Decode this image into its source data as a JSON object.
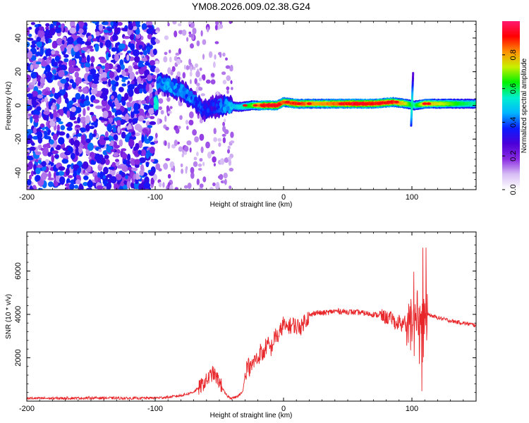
{
  "figure_title": "YM08.2026.009.02.38.G24",
  "chart_data": [
    {
      "type": "heatmap",
      "title": "YM08.2026.009.02.38.G24",
      "xlabel": "Height of straight line (km)",
      "ylabel": "Frequency (Hz)",
      "xlim": [
        -200,
        150
      ],
      "ylim": [
        -50,
        50
      ],
      "xticks": [
        -200,
        -100,
        0,
        100
      ],
      "xtick_labels": [
        "-200",
        "-100",
        "0",
        "100"
      ],
      "yticks": [
        -40,
        -20,
        0,
        20,
        40
      ],
      "ytick_labels": [
        "-40",
        "-20",
        "0",
        "20",
        "40"
      ],
      "colorbar": {
        "label": "Normalized spectral amplitude",
        "range": [
          0.0,
          1.0
        ],
        "ticks": [
          0.0,
          0.2,
          0.4,
          0.6,
          0.8
        ],
        "tick_labels": [
          "0.0",
          "0.2",
          "0.4",
          "0.6",
          "0.8"
        ],
        "colormap": [
          "#ffffff",
          "#d8bff5",
          "#8a2be2",
          "#4b00d8",
          "#0a1cff",
          "#00b4ff",
          "#00f0d0",
          "#00f000",
          "#c8f000",
          "#ff9000",
          "#ff0000",
          "#ff1a70"
        ]
      },
      "noise_region_km": [
        -200,
        -100
      ],
      "ridge": [
        {
          "h": -98,
          "f": 14,
          "a": 0.4
        },
        {
          "h": -90,
          "f": 12,
          "a": 0.42
        },
        {
          "h": -80,
          "f": 9,
          "a": 0.4
        },
        {
          "h": -70,
          "f": 4,
          "a": 0.38
        },
        {
          "h": -62,
          "f": -3,
          "a": 0.32
        },
        {
          "h": -55,
          "f": -1,
          "a": 0.3
        },
        {
          "h": -45,
          "f": 0,
          "a": 0.42
        },
        {
          "h": -35,
          "f": -1,
          "a": 0.5
        },
        {
          "h": -25,
          "f": 0,
          "a": 0.65
        },
        {
          "h": -15,
          "f": 0,
          "a": 0.95
        },
        {
          "h": -5,
          "f": 0,
          "a": 0.98
        },
        {
          "h": 0,
          "f": 2,
          "a": 0.85
        },
        {
          "h": 10,
          "f": 1,
          "a": 0.9
        },
        {
          "h": 25,
          "f": 1,
          "a": 0.8
        },
        {
          "h": 40,
          "f": 1,
          "a": 0.85
        },
        {
          "h": 55,
          "f": 1,
          "a": 0.95
        },
        {
          "h": 70,
          "f": 1,
          "a": 0.92
        },
        {
          "h": 85,
          "f": 2,
          "a": 0.9
        },
        {
          "h": 95,
          "f": 1,
          "a": 0.75
        },
        {
          "h": 102,
          "f": 0,
          "a": 0.55
        },
        {
          "h": 110,
          "f": 1,
          "a": 0.8
        },
        {
          "h": 125,
          "f": 1,
          "a": 0.72
        },
        {
          "h": 140,
          "f": 1,
          "a": 0.6
        },
        {
          "h": 150,
          "f": 1,
          "a": 0.55
        }
      ]
    },
    {
      "type": "line",
      "xlabel": "Height of straight line (km)",
      "ylabel": "SNR (10 * v/v)",
      "xlim": [
        -200,
        150
      ],
      "ylim": [
        0,
        7800
      ],
      "xticks": [
        -200,
        -100,
        0,
        100
      ],
      "xtick_labels": [
        "-200",
        "-100",
        "0",
        "100"
      ],
      "yticks": [
        2000,
        4000,
        6000
      ],
      "ytick_labels": [
        "2000",
        "4000",
        "6000"
      ],
      "color": "#e8262a",
      "series": [
        {
          "name": "SNR",
          "x": [
            -200,
            -180,
            -160,
            -140,
            -120,
            -100,
            -90,
            -80,
            -75,
            -70,
            -65,
            -60,
            -55,
            -50,
            -48,
            -46,
            -44,
            -42,
            -40,
            -36,
            -32,
            -30,
            -28,
            -26,
            -24,
            -22,
            -20,
            -18,
            -16,
            -14,
            -12,
            -10,
            -8,
            -6,
            -4,
            -2,
            0,
            2,
            4,
            6,
            8,
            10,
            12,
            14,
            16,
            18,
            20,
            25,
            30,
            40,
            50,
            60,
            70,
            75,
            80,
            85,
            88,
            90,
            92,
            94,
            96,
            98,
            100,
            102,
            104,
            106,
            108,
            110,
            112,
            120,
            130,
            140,
            150
          ],
          "y": [
            130,
            130,
            140,
            150,
            130,
            150,
            180,
            260,
            330,
            430,
            660,
            950,
            1300,
            900,
            650,
            400,
            250,
            170,
            150,
            200,
            420,
            1150,
            1750,
            1450,
            1700,
            1950,
            1900,
            2300,
            2100,
            2500,
            2600,
            2400,
            2700,
            3100,
            2900,
            3300,
            3600,
            3300,
            3500,
            3450,
            3550,
            3400,
            3500,
            3400,
            3700,
            3800,
            3900,
            4100,
            4050,
            4150,
            4120,
            4080,
            4000,
            3950,
            3850,
            3800,
            3500,
            3700,
            3300,
            3900,
            3200,
            4100,
            2900,
            3300,
            4600,
            2600,
            5200,
            3800,
            4000,
            3850,
            3700,
            3600,
            3500
          ]
        }
      ],
      "noise_regions": [
        {
          "x": [
            -66,
            -48
          ],
          "amplitude": 700
        },
        {
          "x": [
            -30,
            20
          ],
          "amplitude": 800
        },
        {
          "x": [
            75,
            96
          ],
          "amplitude": 650
        },
        {
          "x": [
            96,
            112
          ],
          "amplitude": 2400
        }
      ]
    }
  ]
}
